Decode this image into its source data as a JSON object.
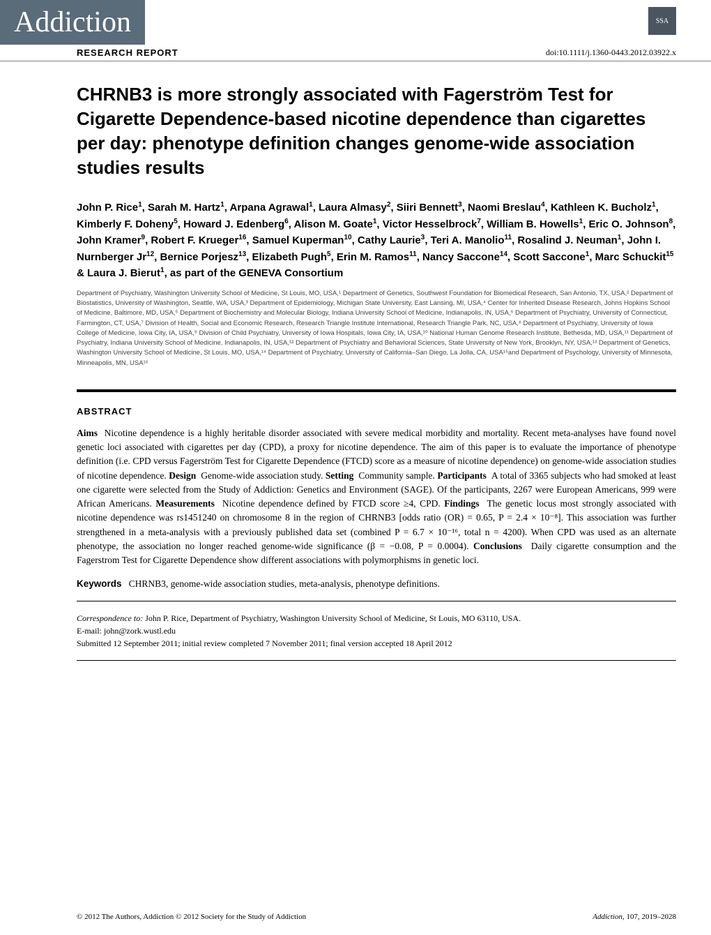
{
  "header": {
    "journal_name": "Addiction",
    "publisher_abbr": "SSA",
    "research_report": "RESEARCH REPORT",
    "doi": "doi:10.1111/j.1360-0443.2012.03922.x"
  },
  "title": "CHRNB3 is more strongly associated with Fagerström Test for Cigarette Dependence-based nicotine dependence than cigarettes per day: phenotype definition changes genome-wide association studies results",
  "authors_html": "John P. Rice<sup>1</sup>, Sarah M. Hartz<sup>1</sup>, Arpana Agrawal<sup>1</sup>, Laura Almasy<sup>2</sup>, Siiri Bennett<sup>3</sup>, Naomi Breslau<sup>4</sup>, Kathleen K. Bucholz<sup>1</sup>, Kimberly F. Doheny<sup>5</sup>, Howard J. Edenberg<sup>6</sup>, Alison M. Goate<sup>1</sup>, Victor Hesselbrock<sup>7</sup>, William B. Howells<sup>1</sup>, Eric O. Johnson<sup>8</sup>, John Kramer<sup>9</sup>, Robert F. Krueger<sup>16</sup>, Samuel Kuperman<sup>10</sup>, Cathy Laurie<sup>3</sup>, Teri A. Manolio<sup>11</sup>, Rosalind J. Neuman<sup>1</sup>, John I. Nurnberger Jr<sup>12</sup>, Bernice Porjesz<sup>13</sup>, Elizabeth Pugh<sup>5</sup>, Erin M. Ramos<sup>11</sup>, Nancy Saccone<sup>14</sup>, Scott Saccone<sup>1</sup>, Marc Schuckit<sup>15</sup> & Laura J. Bierut<sup>1</sup>, as part of the GENEVA Consortium",
  "affiliations": "Department of Psychiatry, Washington University School of Medicine, St Louis, MO, USA,¹ Department of Genetics, Southwest Foundation for Biomedical Research, San Antonio, TX, USA,² Department of Biostatistics, University of Washington, Seattle, WA, USA,³ Department of Epidemiology, Michigan State University, East Lansing, MI, USA,⁴ Center for Inherited Disease Research, Johns Hopkins School of Medicine, Baltimore, MD, USA,⁵ Department of Biochemistry and Molecular Biology, Indiana University School of Medicine, Indianapolis, IN, USA,⁶ Department of Psychiatry, University of Connecticut, Farmington, CT, USA,⁷ Division of Health, Social and Economic Research, Research Triangle Institute International, Research Triangle Park, NC, USA,⁸ Department of Psychiatry, University of Iowa College of Medicine, Iowa City, IA, USA,⁹ Division of Child Psychiatry, University of Iowa Hospitals, Iowa City, IA, USA,¹⁰ National Human Genome Research Institute, Bethesda, MD, USA,¹¹ Department of Psychiatry, Indiana University School of Medicine, Indianapolis, IN, USA,¹² Department of Psychiatry and Behavioral Sciences, State University of New York, Brooklyn, NY, USA,¹³ Department of Genetics, Washington University School of Medicine, St Louis, MO, USA,¹⁴ Department of Psychiatry, University of California–San Diego, La Jolla, CA, USA¹⁵and Department of Psychology, University of Minnesota, Minneapolis, MN, USA¹⁶",
  "abstract": {
    "heading": "ABSTRACT",
    "aims_label": "Aims",
    "aims": "Nicotine dependence is a highly heritable disorder associated with severe medical morbidity and mortality. Recent meta-analyses have found novel genetic loci associated with cigarettes per day (CPD), a proxy for nicotine dependence. The aim of this paper is to evaluate the importance of phenotype definition (i.e. CPD versus Fagerström Test for Cigarette Dependence (FTCD) score as a measure of nicotine dependence) on genome-wide association studies of nicotine dependence.",
    "design_label": "Design",
    "design": "Genome-wide association study.",
    "setting_label": "Setting",
    "setting": "Community sample.",
    "participants_label": "Participants",
    "participants": "A total of 3365 subjects who had smoked at least one cigarette were selected from the Study of Addiction: Genetics and Environment (SAGE). Of the participants, 2267 were European Americans, 999 were African Americans.",
    "measurements_label": "Measurements",
    "measurements": "Nicotine dependence defined by FTCD score ≥4, CPD.",
    "findings_label": "Findings",
    "findings": "The genetic locus most strongly associated with nicotine dependence was rs1451240 on chromosome 8 in the region of CHRNB3 [odds ratio (OR) = 0.65, P = 2.4 × 10⁻⁸]. This association was further strengthened in a meta-analysis with a previously published data set (combined P = 6.7 × 10⁻¹⁶, total n = 4200). When CPD was used as an alternate phenotype, the association no longer reached genome-wide significance (β = −0.08, P = 0.0004).",
    "conclusions_label": "Conclusions",
    "conclusions": "Daily cigarette consumption and the Fagerstrom Test for Cigarette Dependence show different associations with polymorphisms in genetic loci."
  },
  "keywords": {
    "label": "Keywords",
    "text": "CHRNB3, genome-wide association studies, meta-analysis, phenotype definitions."
  },
  "correspondence": {
    "to_label": "Correspondence to:",
    "to": "John P. Rice, Department of Psychiatry, Washington University School of Medicine, St Louis, MO 63110, USA.",
    "email_label": "E-mail:",
    "email": "john@zork.wustl.edu",
    "submitted": "Submitted 12 September 2011; initial review completed 7 November 2011; final version accepted 18 April 2012"
  },
  "footer": {
    "copyright": "© 2012 The Authors, Addiction © 2012 Society for the Study of Addiction",
    "journal_ref": "Addiction, 107, 2019–2028"
  },
  "colors": {
    "header_bg": "#5a6b7a",
    "text": "#000000",
    "affil_text": "#444444",
    "page_bg": "#ffffff"
  },
  "typography": {
    "journal_name_fontsize": 42,
    "title_fontsize": 26,
    "authors_fontsize": 15,
    "affiliations_fontsize": 9.5,
    "abstract_fontsize": 13.5,
    "footer_fontsize": 11
  }
}
